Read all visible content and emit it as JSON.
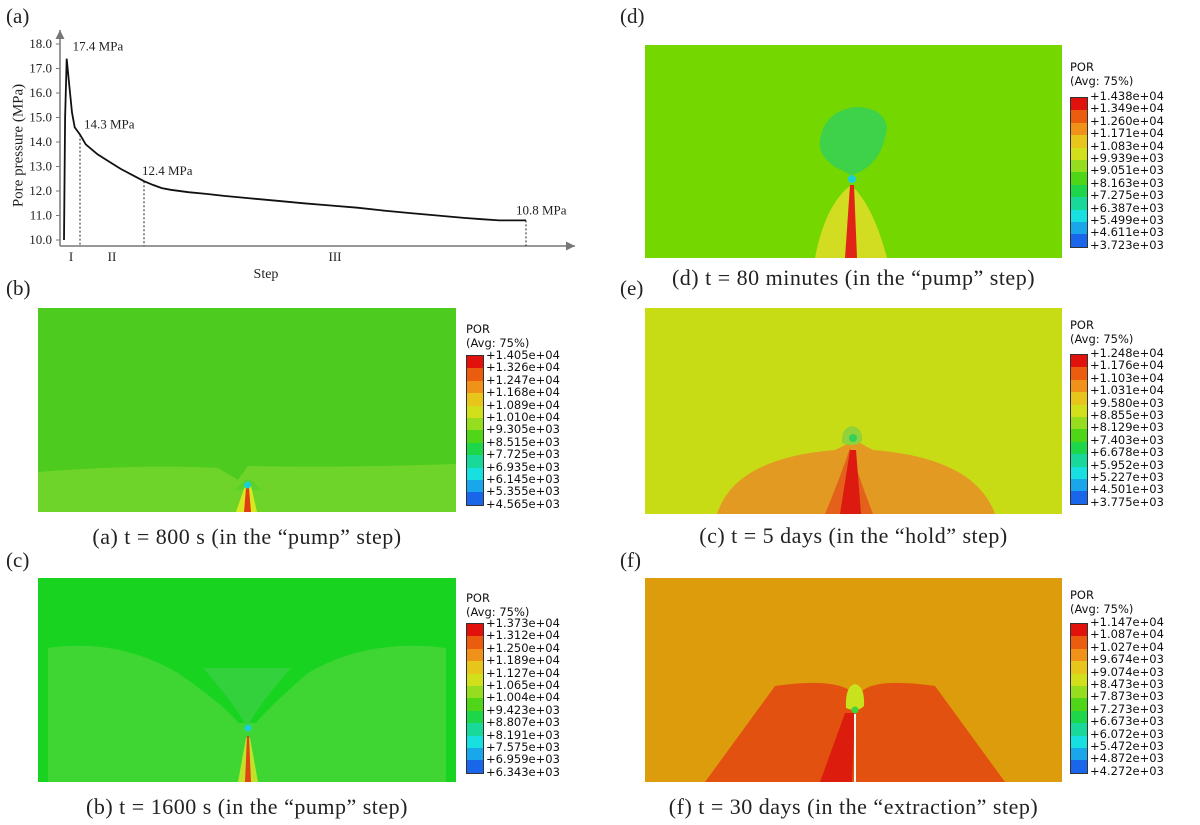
{
  "line_chart": {
    "panel_label": "(a)",
    "ylabel": "Pore pressure (MPa)",
    "xlabel": "Step",
    "yticks": [
      "10.0",
      "11.0",
      "12.0",
      "13.0",
      "14.0",
      "15.0",
      "16.0",
      "17.0",
      "18.0"
    ],
    "stage_labels": [
      "I",
      "II",
      "III"
    ],
    "annotations": [
      "17.4 MPa",
      "14.3 MPa",
      "12.4 MPa",
      "10.8 MPa"
    ]
  },
  "chart_data": {
    "type": "line",
    "title": "",
    "xlabel": "Step",
    "ylabel": "Pore pressure (MPa)",
    "ylim": [
      9.8,
      18.5
    ],
    "x_ticks_shown": false,
    "series": [
      {
        "x": [
          0,
          0.2,
          0.5,
          1,
          1.5,
          2,
          3,
          4,
          6,
          8,
          10,
          12,
          14,
          16,
          18,
          20,
          24,
          28,
          32,
          38,
          44,
          50,
          56,
          62,
          68,
          74,
          80,
          86,
          90,
          94,
          100
        ],
        "y": [
          10.0,
          15.0,
          17.4,
          16.3,
          15.2,
          14.6,
          14.3,
          13.9,
          13.5,
          13.2,
          12.9,
          12.65,
          12.4,
          12.25,
          12.12,
          12.05,
          11.95,
          11.88,
          11.8,
          11.7,
          11.6,
          11.5,
          11.41,
          11.32,
          11.2,
          11.1,
          11.0,
          10.9,
          10.85,
          10.8,
          10.8
        ]
      }
    ],
    "stage_boundaries_x": [
      3,
      14,
      100
    ],
    "annotations": [
      {
        "text": "17.4 MPa",
        "x": 0.5,
        "y": 17.4
      },
      {
        "text": "14.3 MPa",
        "x": 3,
        "y": 14.3
      },
      {
        "text": "12.4 MPa",
        "x": 14,
        "y": 12.4
      },
      {
        "text": "10.8 MPa",
        "x": 100,
        "y": 10.8
      }
    ],
    "stages": [
      "I",
      "II",
      "III"
    ]
  },
  "contour_panels": [
    {
      "label": "(b)",
      "caption": "(a) t = 800 s (in the “pump” step)",
      "legend_title": [
        "POR",
        "(Avg: 75%)"
      ],
      "legend_values": [
        "+1.405e+04",
        "+1.326e+04",
        "+1.247e+04",
        "+1.168e+04",
        "+1.089e+04",
        "+1.010e+04",
        "+9.305e+03",
        "+8.515e+03",
        "+7.725e+03",
        "+6.935e+03",
        "+6.145e+03",
        "+5.355e+03",
        "+4.565e+03"
      ],
      "colors": {
        "background": "#4dcc1f",
        "lower_region": "#6fd42a",
        "plume": "#d8e820",
        "core": "#e03d10"
      }
    },
    {
      "label": "(c)",
      "caption": "(b) t = 1600 s (in the “pump” step)",
      "legend_title": [
        "POR",
        "(Avg: 75%)"
      ],
      "legend_values": [
        "+1.373e+04",
        "+1.312e+04",
        "+1.250e+04",
        "+1.189e+04",
        "+1.127e+04",
        "+1.065e+04",
        "+1.004e+04",
        "+9.423e+03",
        "+8.807e+03",
        "+8.191e+03",
        "+7.575e+03",
        "+6.959e+03",
        "+6.343e+03"
      ],
      "colors": {
        "background": "#19d321",
        "lower_region": "#3fd634",
        "plume": "#c2e22a",
        "core": "#e04513"
      }
    },
    {
      "label": "(d)",
      "caption": "(d) t = 80 minutes (in the “pump” step)",
      "legend_title": [
        "POR",
        "(Avg: 75%)"
      ],
      "legend_values": [
        "+1.438e+04",
        "+1.349e+04",
        "+1.260e+04",
        "+1.171e+04",
        "+1.083e+04",
        "+9.939e+03",
        "+9.051e+03",
        "+8.163e+03",
        "+7.275e+03",
        "+6.387e+03",
        "+5.499e+03",
        "+4.611e+03",
        "+3.723e+03"
      ],
      "colors": {
        "background": "#74d800",
        "bubble": "#3ed14a",
        "plume": "#d2dd22",
        "core": "#e02518"
      }
    },
    {
      "label": "(e)",
      "caption": "(c) t = 5 days (in the “hold” step)",
      "legend_title": [
        "POR",
        "(Avg: 75%)"
      ],
      "legend_values": [
        "+1.248e+04",
        "+1.176e+04",
        "+1.103e+04",
        "+1.031e+04",
        "+9.580e+03",
        "+8.855e+03",
        "+8.129e+03",
        "+7.403e+03",
        "+6.678e+03",
        "+5.952e+03",
        "+5.227e+03",
        "+4.501e+03",
        "+3.775e+03"
      ],
      "colors": {
        "background": "#c8dc16",
        "dome": "#e39a22",
        "inner": "#e3611a",
        "core": "#dd1a10",
        "bubble": "#8fd23a"
      }
    },
    {
      "label": "(f)",
      "caption": "(f) t = 30 days (in the “extraction” step)",
      "legend_title": [
        "POR",
        "(Avg: 75%)"
      ],
      "legend_values": [
        "+1.147e+04",
        "+1.087e+04",
        "+1.027e+04",
        "+9.674e+03",
        "+9.074e+03",
        "+8.473e+03",
        "+7.873e+03",
        "+7.273e+03",
        "+6.673e+03",
        "+6.072e+03",
        "+5.472e+03",
        "+4.872e+03",
        "+4.272e+03"
      ],
      "colors": {
        "background": "#dc9c0c",
        "dome": "#e2510f",
        "core": "#dc1d0e",
        "bubble": "#c8e21e"
      }
    }
  ],
  "legend_palette": [
    "#e0120b",
    "#eb5c0f",
    "#f0911a",
    "#e8c51a",
    "#d2e01c",
    "#96dd1f",
    "#4fd619",
    "#1ed64a",
    "#19d99a",
    "#19e0e0",
    "#1aa6ea",
    "#1a66ea",
    "#1b1fe6"
  ]
}
